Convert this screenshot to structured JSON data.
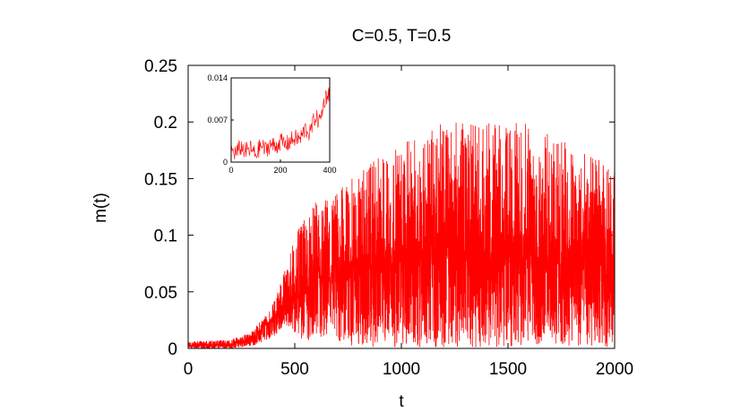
{
  "chart_data": [
    {
      "type": "line",
      "title": "C=0.5, T=0.5",
      "xlabel": "t",
      "ylabel": "m(t)",
      "xlim": [
        0,
        2000
      ],
      "ylim": [
        0,
        0.25
      ],
      "x_ticks": [
        "0",
        "500",
        "1000",
        "1500",
        "2000"
      ],
      "y_ticks": [
        "0",
        "0.05",
        "0.1",
        "0.15",
        "0.2",
        "0.25"
      ],
      "grid": false,
      "series": [
        {
          "color": "#ff0000",
          "envelope": {
            "t": [
              0,
              200,
              300,
              400,
              450,
              500,
              600,
              700,
              800,
              900,
              1000,
              1100,
              1200,
              1300,
              1400,
              1500,
              1600,
              1700,
              1800,
              1900,
              2000
            ],
            "low": [
              0,
              0,
              0.002,
              0.01,
              0.02,
              0.01,
              0.005,
              0.002,
              0.001,
              0.001,
              0.001,
              0.001,
              0.001,
              0.001,
              0.001,
              0.001,
              0.001,
              0.001,
              0.001,
              0.001,
              0.001
            ],
            "mean": [
              0.002,
              0.003,
              0.008,
              0.025,
              0.035,
              0.045,
              0.055,
              0.06,
              0.065,
              0.07,
              0.075,
              0.078,
              0.08,
              0.08,
              0.08,
              0.08,
              0.078,
              0.075,
              0.07,
              0.068,
              0.065
            ],
            "high": [
              0.006,
              0.008,
              0.015,
              0.04,
              0.07,
              0.1,
              0.13,
              0.14,
              0.155,
              0.17,
              0.18,
              0.19,
              0.2,
              0.2,
              0.2,
              0.2,
              0.2,
              0.19,
              0.18,
              0.17,
              0.16
            ]
          }
        }
      ]
    },
    {
      "type": "line",
      "title": "",
      "xlabel": "",
      "ylabel": "",
      "xlim": [
        0,
        400
      ],
      "ylim": [
        0,
        0.014
      ],
      "x_ticks": [
        "0",
        "200",
        "400"
      ],
      "y_ticks": [
        "0",
        "0.007",
        "0.014"
      ],
      "series": [
        {
          "color": "#ff0000",
          "points": {
            "t": [
              0,
              20,
              40,
              60,
              80,
              100,
              120,
              140,
              160,
              180,
              200,
              220,
              240,
              260,
              280,
              300,
              320,
              340,
              360,
              380,
              400
            ],
            "m": [
              0.002,
              0.0015,
              0.0025,
              0.0018,
              0.0022,
              0.0012,
              0.0028,
              0.002,
              0.003,
              0.0025,
              0.0035,
              0.0028,
              0.0035,
              0.004,
              0.0038,
              0.0055,
              0.0048,
              0.0075,
              0.0068,
              0.0105,
              0.0118
            ]
          }
        }
      ]
    }
  ]
}
